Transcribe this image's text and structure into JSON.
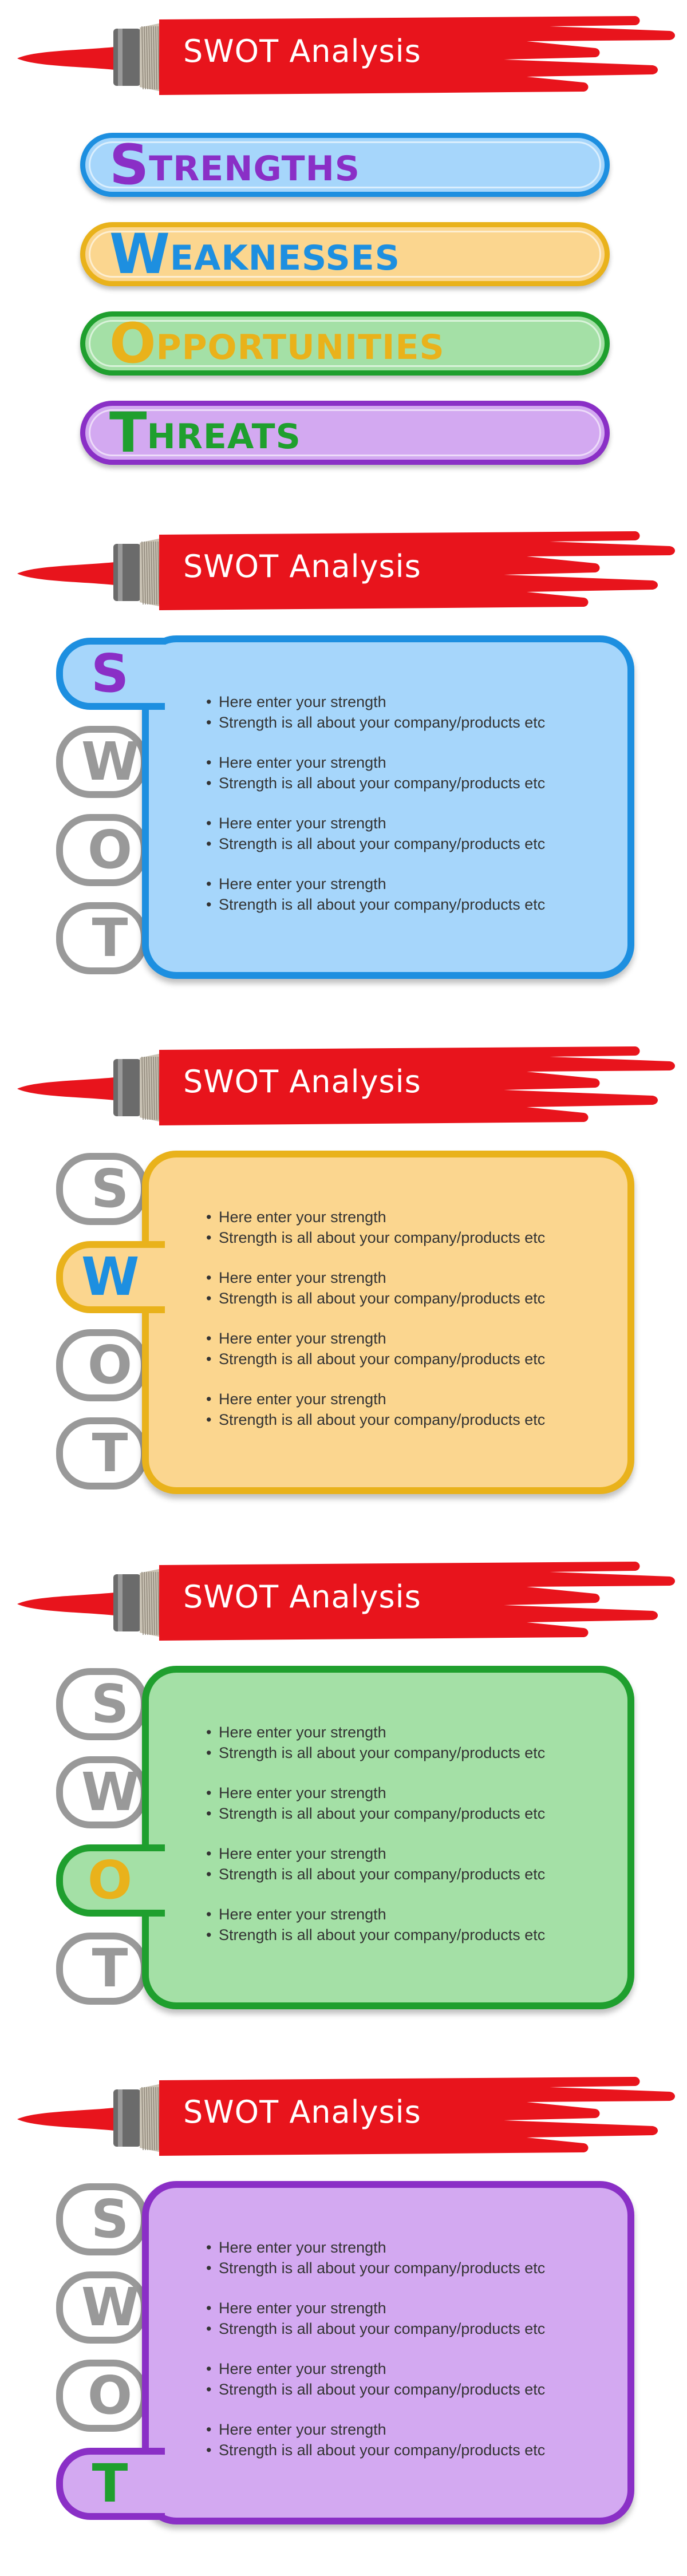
{
  "banner_title": "SWOT Analysis",
  "colors": {
    "brush_red": "#e8141c",
    "strengths": {
      "border": "#1d8fe0",
      "fill": "#a6d6fb",
      "text": "#8a2fc6"
    },
    "weaknesses": {
      "border": "#e9b21b",
      "fill": "#fbd68f",
      "text": "#1d8fe0"
    },
    "opportunities": {
      "border": "#1f9f2e",
      "fill": "#a4e0a6",
      "text": "#e9b21b"
    },
    "threats": {
      "border": "#8a2fc6",
      "fill": "#d3a9f1",
      "text": "#1f9f2e"
    },
    "inactive_letter": "#999999"
  },
  "overview": [
    {
      "first": "S",
      "rest": "TRENGTHS"
    },
    {
      "first": "W",
      "rest": "EAKNESSES"
    },
    {
      "first": "O",
      "rest": "PPORTUNITIES"
    },
    {
      "first": "T",
      "rest": "HREATS"
    }
  ],
  "letters": [
    "S",
    "W",
    "O",
    "T"
  ],
  "bullet_text": {
    "line1": "Here enter  your strength",
    "line2": "Strength is all about your company/products etc"
  },
  "slides": [
    {
      "name": "strengths",
      "active": 0,
      "groups": [
        {
          "line1": "Here enter  your strength",
          "line2": "Strength is all about your company/products etc"
        },
        {
          "line1": "Here enter  your strength",
          "line2": "Strength is all about your company/products etc"
        },
        {
          "line1": "Here enter  your strength",
          "line2": "Strength is all about your company/products etc"
        },
        {
          "line1": "Here enter  your strength",
          "line2": "Strength is all about your company/products etc"
        }
      ]
    },
    {
      "name": "weaknesses",
      "active": 1,
      "groups": [
        {
          "line1": "Here enter  your strength",
          "line2": "Strength is all about your company/products etc"
        },
        {
          "line1": "Here enter  your strength",
          "line2": "Strength is all about your company/products etc"
        },
        {
          "line1": "Here enter  your strength",
          "line2": "Strength is all about your company/products etc"
        },
        {
          "line1": "Here enter  your strength",
          "line2": "Strength is all about your company/products etc"
        }
      ]
    },
    {
      "name": "opportunities",
      "active": 2,
      "groups": [
        {
          "line1": "Here enter  your strength",
          "line2": "Strength is all about your company/products etc"
        },
        {
          "line1": "Here enter  your strength",
          "line2": "Strength is all about your company/products etc"
        },
        {
          "line1": "Here enter  your strength",
          "line2": "Strength is all about your company/products etc"
        },
        {
          "line1": "Here enter  your strength",
          "line2": "Strength is all about your company/products etc"
        }
      ]
    },
    {
      "name": "threats",
      "active": 3,
      "groups": [
        {
          "line1": "Here enter  your strength",
          "line2": "Strength is all about your company/products etc"
        },
        {
          "line1": "Here enter  your strength",
          "line2": "Strength is all about your company/products etc"
        },
        {
          "line1": "Here enter  your strength",
          "line2": "Strength is all about your company/products etc"
        },
        {
          "line1": "Here enter  your strength",
          "line2": "Strength is all about your company/products etc"
        }
      ]
    }
  ]
}
